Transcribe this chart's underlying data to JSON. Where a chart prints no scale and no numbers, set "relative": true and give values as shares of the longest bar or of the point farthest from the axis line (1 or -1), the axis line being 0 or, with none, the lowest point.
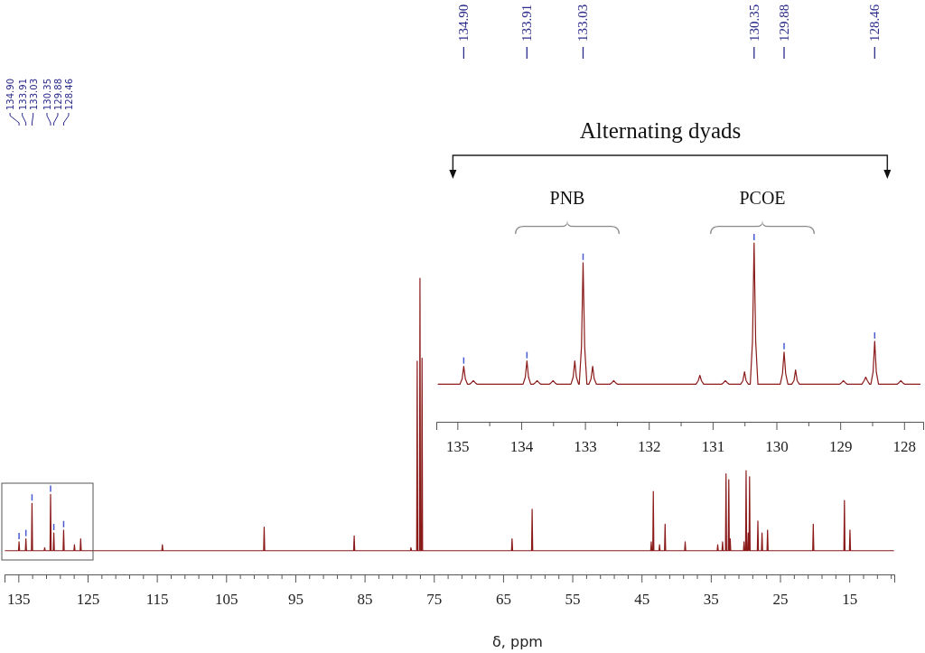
{
  "chart_data": [
    {
      "type": "line",
      "relative": true,
      "xlabel": "δ, ppm",
      "xlim": [
        137,
        8.5
      ],
      "xticks": [
        135,
        {
          "value": 133,
          "label": null
        },
        {
          "value": 131,
          "label": null
        },
        {
          "value": 129,
          "label": null
        },
        {
          "value": 127,
          "label": null
        },
        125,
        {
          "value": 123,
          "label": null
        },
        {
          "value": 121,
          "label": null
        },
        {
          "value": 119,
          "label": null
        },
        {
          "value": 117,
          "label": null
        },
        115,
        {
          "value": 113,
          "label": null
        },
        {
          "value": 111,
          "label": null
        },
        {
          "value": 109,
          "label": null
        },
        {
          "value": 107,
          "label": null
        },
        105,
        {
          "value": 103,
          "label": null
        },
        {
          "value": 101,
          "label": null
        },
        {
          "value": 99,
          "label": null
        },
        {
          "value": 97,
          "label": null
        },
        95,
        {
          "value": 93,
          "label": null
        },
        {
          "value": 91,
          "label": null
        },
        {
          "value": 89,
          "label": null
        },
        {
          "value": 87,
          "label": null
        },
        85,
        {
          "value": 83,
          "label": null
        },
        {
          "value": 81,
          "label": null
        },
        {
          "value": 79,
          "label": null
        },
        {
          "value": 77,
          "label": null
        },
        75,
        {
          "value": 73,
          "label": null
        },
        {
          "value": 71,
          "label": null
        },
        {
          "value": 69,
          "label": null
        },
        {
          "value": 67,
          "label": null
        },
        65,
        {
          "value": 63,
          "label": null
        },
        {
          "value": 61,
          "label": null
        },
        {
          "value": 59,
          "label": null
        },
        {
          "value": 57,
          "label": null
        },
        55,
        {
          "value": 53,
          "label": null
        },
        {
          "value": 51,
          "label": null
        },
        {
          "value": 49,
          "label": null
        },
        {
          "value": 47,
          "label": null
        },
        45,
        {
          "value": 43,
          "label": null
        },
        {
          "value": 41,
          "label": null
        },
        {
          "value": 39,
          "label": null
        },
        {
          "value": 37,
          "label": null
        },
        35,
        {
          "value": 33,
          "label": null
        },
        {
          "value": 31,
          "label": null
        },
        {
          "value": 29,
          "label": null
        },
        {
          "value": 27,
          "label": null
        },
        25,
        {
          "value": 23,
          "label": null
        },
        {
          "value": 21,
          "label": null
        },
        {
          "value": 19,
          "label": null
        },
        {
          "value": 17,
          "label": null
        },
        15,
        {
          "value": 13,
          "label": null
        },
        {
          "value": 11,
          "label": null
        },
        {
          "value": 9,
          "label": null
        }
      ],
      "series": [
        {
          "color": "#8b1a1a",
          "x": [
            136.9,
            134.98,
            134.9,
            134.82,
            133.99,
            133.91,
            133.83,
            133.11,
            133.03,
            132.95,
            131.28,
            131.2,
            131.12,
            130.43,
            130.35,
            130.27,
            129.96,
            129.88,
            129.8,
            128.54,
            128.46,
            128.38,
            126.98,
            126.9,
            126.82,
            126.08,
            126.0,
            125.92,
            114.28,
            114.2,
            114.12,
            99.58,
            99.5,
            99.42,
            86.58,
            86.5,
            86.42,
            78.38,
            78.3,
            78.22,
            77.48,
            77.4,
            77.32,
            77.08,
            77.0,
            76.92,
            76.78,
            76.7,
            76.62,
            63.78,
            63.7,
            63.62,
            60.88,
            60.8,
            60.72,
            43.68,
            43.6,
            43.52,
            43.38,
            43.3,
            43.22,
            42.48,
            42.4,
            42.32,
            41.68,
            41.6,
            41.52,
            38.78,
            38.7,
            38.62,
            34.08,
            34.0,
            33.92,
            33.38,
            33.3,
            33.22,
            32.88,
            32.8,
            32.72,
            32.48,
            32.4,
            32.32,
            32.28,
            32.2,
            32.12,
            30.28,
            30.2,
            30.12,
            29.98,
            29.9,
            29.82,
            29.68,
            29.6,
            29.52,
            29.48,
            29.4,
            29.32,
            28.28,
            28.2,
            28.12,
            27.68,
            27.6,
            27.52,
            26.88,
            26.8,
            26.72,
            20.28,
            20.2,
            20.12,
            15.78,
            15.7,
            15.62,
            14.98,
            14.9,
            14.82,
            8.6
          ],
          "values": [
            0.08,
            0.08,
            0.11,
            0.08,
            0.08,
            0.12,
            0.08,
            0.08,
            0.24,
            0.08,
            0.08,
            0.09,
            0.08,
            0.08,
            0.27,
            0.08,
            0.08,
            0.14,
            0.08,
            0.08,
            0.15,
            0.08,
            0.08,
            0.1,
            0.08,
            0.08,
            0.12,
            0.08,
            0.08,
            0.1,
            0.08,
            0.08,
            0.16,
            0.08,
            0.08,
            0.13,
            0.08,
            0.08,
            0.09,
            0.08,
            0.08,
            0.72,
            0.08,
            0.08,
            1,
            0.08,
            0.08,
            0.73,
            0.08,
            0.08,
            0.12,
            0.08,
            0.08,
            0.22,
            0.08,
            0.08,
            0.11,
            0.08,
            0.08,
            0.28,
            0.08,
            0.08,
            0.1,
            0.08,
            0.08,
            0.17,
            0.08,
            0.08,
            0.11,
            0.08,
            0.08,
            0.1,
            0.08,
            0.08,
            0.11,
            0.08,
            0.08,
            0.34,
            0.08,
            0.08,
            0.32,
            0.08,
            0.08,
            0.12,
            0.08,
            0.08,
            0.11,
            0.08,
            0.08,
            0.35,
            0.08,
            0.08,
            0.14,
            0.08,
            0.08,
            0.33,
            0.08,
            0.08,
            0.18,
            0.08,
            0.08,
            0.14,
            0.08,
            0.08,
            0.15,
            0.08,
            0.08,
            0.17,
            0.08,
            0.08,
            0.25,
            0.08,
            0.08,
            0.15,
            0.08,
            0.08
          ]
        }
      ],
      "annotations": [
        {
          "text": "134.90",
          "x": 134.9
        },
        {
          "text": "133.91",
          "x": 133.91
        },
        {
          "text": "133.03",
          "x": 133.03
        },
        {
          "text": "130.35",
          "x": 130.35
        },
        {
          "text": "129.88",
          "x": 129.88
        },
        {
          "text": "128.46",
          "x": 128.46
        }
      ]
    },
    {
      "type": "line",
      "relative": true,
      "xlim": [
        135.33,
        127.7
      ],
      "xticks": [
        135,
        {
          "value": 134.5,
          "label": null
        },
        134,
        {
          "value": 133.5,
          "label": null
        },
        133,
        {
          "value": 132.5,
          "label": null
        },
        132,
        {
          "value": 131.5,
          "label": null
        },
        131,
        {
          "value": 130.5,
          "label": null
        },
        130,
        {
          "value": 129.5,
          "label": null
        },
        129,
        {
          "value": 128.5,
          "label": null
        },
        128
      ],
      "series": [
        {
          "color": "#8b1a1a",
          "x": [
            135.3,
            134.96,
            134.925,
            134.9,
            134.875,
            134.84,
            134.81,
            134.775,
            134.75,
            134.725,
            134.69,
            133.97,
            133.935,
            133.91,
            133.885,
            133.85,
            133.81,
            133.775,
            133.75,
            133.725,
            133.69,
            133.56,
            133.525,
            133.5,
            133.475,
            133.44,
            133.22,
            133.185,
            133.16,
            133.135,
            133.1,
            133.09,
            133.055,
            133.03,
            133.005,
            132.97,
            132.94,
            132.905,
            132.88,
            132.855,
            132.82,
            132.61,
            132.575,
            132.55,
            132.525,
            132.49,
            131.26,
            131.225,
            131.2,
            131.175,
            131.14,
            130.86,
            130.825,
            130.8,
            130.775,
            130.74,
            130.56,
            130.525,
            130.5,
            130.475,
            130.44,
            130.41,
            130.375,
            130.35,
            130.325,
            130.29,
            129.94,
            129.905,
            129.88,
            129.855,
            129.82,
            129.76,
            129.725,
            129.7,
            129.675,
            129.64,
            129.01,
            128.975,
            128.95,
            128.925,
            128.89,
            128.66,
            128.625,
            128.6,
            128.575,
            128.54,
            128.52,
            128.485,
            128.46,
            128.435,
            128.4,
            128.11,
            128.075,
            128.05,
            128.025,
            127.99,
            127.75
          ],
          "values": [
            0.21,
            0.21,
            0.24,
            0.31,
            0.24,
            0.21,
            0.21,
            0.22,
            0.23,
            0.22,
            0.21,
            0.21,
            0.25,
            0.34,
            0.25,
            0.21,
            0.21,
            0.22,
            0.23,
            0.22,
            0.21,
            0.21,
            0.22,
            0.23,
            0.22,
            0.21,
            0.21,
            0.25,
            0.34,
            0.25,
            0.21,
            0.21,
            0.42,
            0.89,
            0.42,
            0.21,
            0.21,
            0.24,
            0.31,
            0.24,
            0.21,
            0.21,
            0.22,
            0.23,
            0.22,
            0.21,
            0.21,
            0.23,
            0.26,
            0.23,
            0.21,
            0.21,
            0.22,
            0.23,
            0.22,
            0.21,
            0.21,
            0.23,
            0.28,
            0.23,
            0.21,
            0.21,
            0.45,
            1,
            0.45,
            0.21,
            0.21,
            0.27,
            0.39,
            0.27,
            0.21,
            0.21,
            0.23,
            0.29,
            0.23,
            0.21,
            0.21,
            0.22,
            0.23,
            0.22,
            0.21,
            0.21,
            0.23,
            0.25,
            0.23,
            0.21,
            0.21,
            0.28,
            0.45,
            0.28,
            0.21,
            0.21,
            0.22,
            0.23,
            0.22,
            0.21,
            0.21
          ]
        }
      ],
      "annotations": [
        {
          "text": "134.90",
          "x": 134.9
        },
        {
          "text": "133.91",
          "x": 133.91
        },
        {
          "text": "133.03",
          "x": 133.03
        },
        {
          "text": "130.35",
          "x": 130.35
        },
        {
          "text": "129.88",
          "x": 129.88
        },
        {
          "text": "128.46",
          "x": 128.46
        },
        "Alternating dyads",
        "PNB",
        "PCOE"
      ]
    }
  ]
}
